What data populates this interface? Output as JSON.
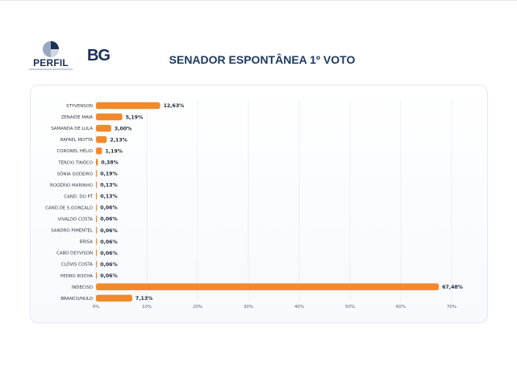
{
  "header": {
    "title": "SENADOR ESPONTÂNEA 1º VOTO",
    "logo_left": "PERFIL",
    "logo_right": "BG"
  },
  "colors": {
    "bar": "#f08a2c",
    "title": "#1e3a60",
    "grid": "#e9edf3"
  },
  "chart_data": {
    "type": "bar",
    "orientation": "horizontal",
    "title": "",
    "xlabel": "",
    "ylabel": "",
    "xlim": [
      0,
      70
    ],
    "xticks": [
      0,
      10,
      20,
      30,
      40,
      50,
      60,
      70
    ],
    "tick_labels": [
      "0%",
      "10%",
      "20%",
      "30%",
      "40%",
      "50%",
      "60%",
      "70%"
    ],
    "grid": true,
    "legend": "none",
    "categories": [
      "STYVENSON",
      "ZENAIDE MAIA",
      "SAMANDA DE LULA",
      "RAFAEL MOTTA",
      "CORONEL HÉLIO",
      "TÉRCIO TINÔCO",
      "SÔNIA GODEIRO",
      "ROGÉRIO MARINHO",
      "CAND. DO PT",
      "CAND.DE S.GONÇALO",
      "VIVALDO COSTA",
      "SANDRO PIMENTEL",
      "BRISA",
      "CABO DEYVISON",
      "CLÓVIS COSTA",
      "PEDRO ROCHA",
      "INDECISO",
      "BRANCO/NULO"
    ],
    "values": [
      12.63,
      5.19,
      3.0,
      2.13,
      1.19,
      0.38,
      0.19,
      0.13,
      0.13,
      0.06,
      0.06,
      0.06,
      0.06,
      0.06,
      0.06,
      0.06,
      67.48,
      7.13
    ],
    "value_labels": [
      "12,63%",
      "5,19%",
      "3,00%",
      "2,13%",
      "1,19%",
      "0,38%",
      "0,19%",
      "0,13%",
      "0,13%",
      "0,06%",
      "0,06%",
      "0,06%",
      "0,06%",
      "0,06%",
      "0,06%",
      "0,06%",
      "67,48%",
      "7,13%"
    ]
  }
}
